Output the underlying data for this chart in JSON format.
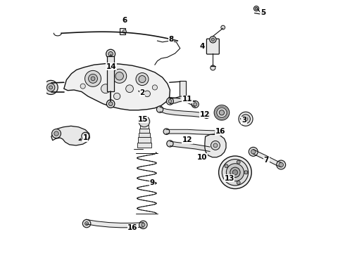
{
  "background_color": "#ffffff",
  "line_color": "#111111",
  "fig_width": 4.9,
  "fig_height": 3.6,
  "dpi": 100,
  "labels": {
    "1": [
      0.115,
      0.415,
      0.095,
      0.435
    ],
    "2": [
      0.37,
      0.62,
      0.345,
      0.64
    ],
    "3": [
      0.78,
      0.52,
      0.76,
      0.54
    ],
    "4": [
      0.61,
      0.81,
      0.63,
      0.83
    ],
    "5": [
      0.85,
      0.945,
      0.825,
      0.945
    ],
    "6": [
      0.305,
      0.92,
      0.33,
      0.92
    ],
    "7": [
      0.87,
      0.36,
      0.845,
      0.375
    ],
    "8": [
      0.49,
      0.84,
      0.49,
      0.82
    ],
    "9": [
      0.415,
      0.27,
      0.44,
      0.285
    ],
    "10": [
      0.61,
      0.375,
      0.635,
      0.39
    ],
    "11": [
      0.555,
      0.6,
      0.555,
      0.58
    ],
    "12a": [
      0.62,
      0.54,
      0.6,
      0.555
    ],
    "12b": [
      0.555,
      0.44,
      0.575,
      0.455
    ],
    "13": [
      0.72,
      0.29,
      0.7,
      0.305
    ],
    "14": [
      0.255,
      0.73,
      0.27,
      0.71
    ],
    "15": [
      0.38,
      0.52,
      0.405,
      0.51
    ],
    "16a": [
      0.685,
      0.475,
      0.66,
      0.475
    ],
    "16b": [
      0.34,
      0.095,
      0.34,
      0.11
    ]
  }
}
